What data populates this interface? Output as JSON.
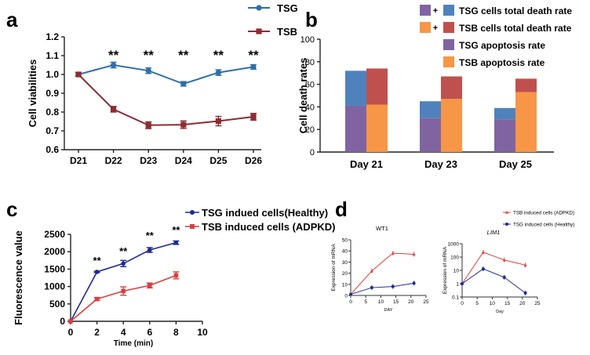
{
  "panels": {
    "a": {
      "label": "a"
    },
    "b": {
      "label": "b"
    },
    "c": {
      "label": "c"
    },
    "d": {
      "label": "d"
    }
  },
  "colors": {
    "tsg_blue": "#2e6fa8",
    "tsb_red": "#8e2b33",
    "bar_blue": "#4f81bd",
    "bar_red": "#c0504d",
    "bar_purple": "#8064a2",
    "bar_orange": "#f79646",
    "c_blue": "#1f2b8f",
    "c_red": "#d94040"
  },
  "chart_data": [
    {
      "id": "a",
      "type": "line",
      "ylabel": "Cell viabilities",
      "xlabel": "",
      "categories": [
        "D21",
        "D22",
        "D23",
        "D24",
        "D25",
        "D26"
      ],
      "ylim": [
        0.6,
        1.2
      ],
      "yticks": [
        "0.6",
        "0.7",
        "0.8",
        "0.9",
        "1.0",
        "1.1",
        "1.2"
      ],
      "series": [
        {
          "name": "TSG",
          "values": [
            1.0,
            1.05,
            1.02,
            0.95,
            1.01,
            1.04
          ],
          "err": [
            0.01,
            0.015,
            0.015,
            0.012,
            0.015,
            0.012
          ]
        },
        {
          "name": "TSB",
          "values": [
            1.0,
            0.815,
            0.73,
            0.733,
            0.752,
            0.775
          ],
          "err": [
            0.01,
            0.015,
            0.018,
            0.02,
            0.025,
            0.018
          ]
        }
      ],
      "annotations": [
        "**",
        "**",
        "**",
        "**",
        "**"
      ]
    },
    {
      "id": "b",
      "type": "bar",
      "ylabel": "Cell death rates",
      "categories": [
        "Day 21",
        "Day 23",
        "Day 25"
      ],
      "ylim": [
        0,
        100
      ],
      "yticks": [
        "0",
        "20",
        "40",
        "60",
        "80",
        "100"
      ],
      "series": [
        {
          "name": "TSG apoptosis rate",
          "values": [
            41,
            30,
            29
          ]
        },
        {
          "name": "TSG cells total death rate",
          "values": [
            72,
            45,
            39
          ]
        },
        {
          "name": "TSB apoptosis rate",
          "values": [
            42,
            47,
            53
          ]
        },
        {
          "name": "TSB cells total death rate",
          "values": [
            74,
            67,
            65
          ]
        }
      ],
      "legend": [
        "TSG cells total death rate",
        "TSB cells total death rate",
        "TSG apoptosis rate",
        "TSB apoptosis rate"
      ],
      "legend_plus": "+"
    },
    {
      "id": "c",
      "type": "line",
      "ylabel": "Fluorescence value",
      "xlabel": "Time (min)",
      "xlim": [
        0,
        10
      ],
      "xticks": [
        "0",
        "2",
        "4",
        "6",
        "8",
        "10"
      ],
      "ylim": [
        0,
        2500
      ],
      "yticks": [
        "0",
        "500",
        "1000",
        "1500",
        "2000",
        "2500"
      ],
      "series": [
        {
          "name": "TSG indued cells(Healthy)",
          "x": [
            0,
            2,
            4,
            6,
            8
          ],
          "values": [
            0,
            1420,
            1660,
            2050,
            2260
          ],
          "err": [
            0,
            20,
            90,
            70,
            50
          ]
        },
        {
          "name": "TSB induced cells (ADPKD)",
          "x": [
            0,
            2,
            4,
            6,
            8
          ],
          "values": [
            0,
            640,
            870,
            1030,
            1320
          ],
          "err": [
            0,
            40,
            120,
            70,
            100
          ]
        }
      ],
      "annotations": [
        "**",
        "**",
        "**",
        "**"
      ]
    },
    {
      "id": "d1",
      "type": "line",
      "title": "WT1",
      "ylabel": "Expression of mRNA",
      "xlabel": "DAY",
      "xlim": [
        0,
        25
      ],
      "xticks": [
        "0",
        "5",
        "10",
        "15",
        "20",
        "25"
      ],
      "ylim": [
        0,
        50
      ],
      "yticks": [
        "0",
        "10",
        "20",
        "30",
        "40",
        "50"
      ],
      "series": [
        {
          "name": "TSB induced cells (ADPKD)",
          "x": [
            0,
            7,
            14,
            21
          ],
          "values": [
            1,
            22,
            38,
            37
          ]
        },
        {
          "name": "TSG induced cells (Healthy)",
          "x": [
            0,
            7,
            14,
            21
          ],
          "values": [
            1,
            7,
            8,
            11
          ]
        }
      ]
    },
    {
      "id": "d2",
      "type": "line",
      "title": "LIM1",
      "ylabel": "Expression of mRNA",
      "xlabel": "Day",
      "xlim": [
        0,
        25
      ],
      "xticks": [
        "0",
        "5",
        "10",
        "15",
        "20",
        "25"
      ],
      "ylim": [
        0.1,
        1000
      ],
      "yscale": "log",
      "yticks": [
        "0.1",
        "1",
        "10",
        "100",
        "1000"
      ],
      "series": [
        {
          "name": "TSB induced cells (ADPKD)",
          "x": [
            0,
            7,
            14,
            21
          ],
          "values": [
            1,
            230,
            60,
            25
          ]
        },
        {
          "name": "TSG induced cells (Healthy)",
          "x": [
            0,
            7,
            14,
            21
          ],
          "values": [
            1,
            13,
            3,
            0.2
          ]
        }
      ]
    }
  ]
}
